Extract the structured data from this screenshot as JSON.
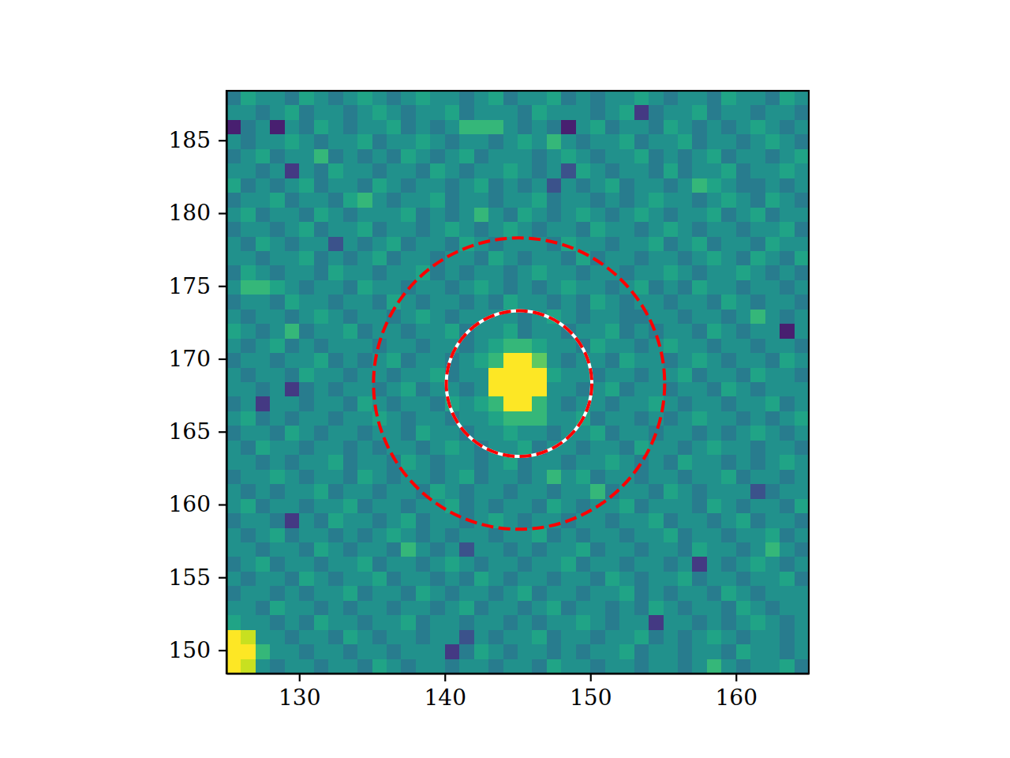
{
  "chart_data": {
    "type": "heatmap",
    "xlim": [
      125,
      165
    ],
    "ylim": [
      148.4,
      188.4
    ],
    "xticks": [
      130,
      140,
      150,
      160
    ],
    "yticks": [
      150,
      155,
      160,
      165,
      170,
      175,
      180,
      185
    ],
    "color": "viridis",
    "color_range": [
      -1,
      11
    ],
    "cells": [
      [
        4,
        6,
        5,
        5,
        4,
        6,
        5,
        4,
        5,
        6,
        5,
        4,
        5,
        6,
        5,
        5,
        4,
        5,
        6,
        4,
        5,
        5,
        6,
        4,
        5,
        4,
        5,
        5,
        6,
        5,
        4,
        5,
        5,
        4,
        6,
        5,
        5,
        4,
        6,
        5
      ],
      [
        5,
        5,
        4,
        5,
        6,
        4,
        5,
        5,
        4,
        5,
        6,
        5,
        4,
        5,
        5,
        6,
        4,
        5,
        5,
        5,
        4,
        6,
        5,
        5,
        5,
        4,
        5,
        6,
        1,
        4,
        5,
        5,
        6,
        4,
        5,
        5,
        4,
        5,
        5,
        4
      ],
      [
        0,
        4,
        5,
        0,
        5,
        4,
        6,
        5,
        4,
        5,
        5,
        6,
        4,
        5,
        4,
        5,
        7,
        7,
        7,
        5,
        4,
        5,
        4,
        0,
        5,
        6,
        4,
        5,
        5,
        4,
        6,
        5,
        4,
        5,
        4,
        5,
        6,
        5,
        4,
        5
      ],
      [
        5,
        4,
        5,
        5,
        6,
        5,
        4,
        5,
        5,
        6,
        4,
        5,
        5,
        6,
        5,
        4,
        5,
        5,
        4,
        5,
        6,
        5,
        7,
        5,
        4,
        5,
        5,
        6,
        4,
        5,
        5,
        6,
        4,
        5,
        5,
        4,
        5,
        6,
        5,
        4
      ],
      [
        4,
        5,
        6,
        4,
        5,
        5,
        7,
        4,
        5,
        4,
        5,
        4,
        6,
        5,
        4,
        5,
        6,
        4,
        5,
        5,
        5,
        4,
        5,
        6,
        5,
        4,
        5,
        5,
        6,
        4,
        5,
        4,
        5,
        6,
        4,
        5,
        5,
        4,
        5,
        6
      ],
      [
        5,
        5,
        4,
        5,
        1,
        5,
        4,
        6,
        5,
        5,
        4,
        5,
        5,
        4,
        6,
        5,
        4,
        5,
        5,
        6,
        5,
        4,
        5,
        2,
        6,
        5,
        4,
        5,
        5,
        4,
        6,
        4,
        5,
        5,
        6,
        4,
        5,
        5,
        6,
        5
      ],
      [
        6,
        4,
        5,
        4,
        5,
        6,
        4,
        5,
        5,
        4,
        6,
        5,
        4,
        5,
        5,
        4,
        5,
        6,
        4,
        5,
        4,
        5,
        2,
        5,
        4,
        5,
        6,
        4,
        5,
        5,
        4,
        5,
        7,
        6,
        5,
        4,
        4,
        5,
        4,
        5
      ],
      [
        4,
        5,
        5,
        6,
        4,
        5,
        5,
        4,
        6,
        7,
        5,
        4,
        5,
        5,
        6,
        4,
        5,
        5,
        4,
        5,
        5,
        6,
        4,
        5,
        5,
        4,
        5,
        4,
        5,
        6,
        5,
        5,
        4,
        5,
        6,
        5,
        4,
        6,
        5,
        4
      ],
      [
        5,
        6,
        4,
        5,
        5,
        4,
        6,
        5,
        4,
        5,
        5,
        5,
        6,
        4,
        5,
        4,
        5,
        7,
        5,
        4,
        6,
        5,
        4,
        5,
        6,
        5,
        4,
        5,
        6,
        5,
        4,
        5,
        5,
        6,
        4,
        5,
        6,
        4,
        5,
        5
      ],
      [
        4,
        5,
        5,
        4,
        5,
        6,
        4,
        5,
        5,
        6,
        4,
        5,
        5,
        4,
        5,
        6,
        5,
        4,
        5,
        6,
        5,
        4,
        5,
        5,
        4,
        6,
        5,
        5,
        4,
        5,
        6,
        5,
        4,
        5,
        5,
        4,
        5,
        5,
        6,
        4
      ],
      [
        5,
        4,
        6,
        5,
        4,
        5,
        5,
        2,
        5,
        4,
        5,
        6,
        4,
        5,
        5,
        4,
        6,
        5,
        4,
        5,
        5,
        5,
        4,
        6,
        5,
        5,
        4,
        5,
        5,
        6,
        4,
        5,
        6,
        4,
        5,
        5,
        4,
        6,
        5,
        5
      ],
      [
        5,
        5,
        4,
        5,
        5,
        6,
        4,
        5,
        4,
        5,
        6,
        4,
        5,
        5,
        4,
        5,
        5,
        4,
        6,
        5,
        4,
        5,
        5,
        4,
        6,
        4,
        5,
        5,
        4,
        5,
        5,
        4,
        5,
        6,
        5,
        4,
        6,
        5,
        4,
        6
      ],
      [
        4,
        6,
        5,
        4,
        5,
        5,
        4,
        6,
        5,
        5,
        4,
        5,
        5,
        6,
        4,
        5,
        4,
        5,
        5,
        4,
        5,
        6,
        5,
        5,
        4,
        5,
        5,
        4,
        5,
        5,
        6,
        5,
        4,
        5,
        5,
        6,
        5,
        4,
        5,
        4
      ],
      [
        5,
        7,
        7,
        6,
        5,
        4,
        5,
        5,
        4,
        6,
        5,
        5,
        4,
        5,
        5,
        4,
        5,
        6,
        5,
        4,
        5,
        4,
        5,
        6,
        5,
        5,
        4,
        5,
        6,
        4,
        5,
        4,
        6,
        5,
        5,
        4,
        5,
        5,
        4,
        5
      ],
      [
        4,
        5,
        5,
        4,
        6,
        5,
        5,
        4,
        5,
        5,
        4,
        6,
        5,
        4,
        5,
        5,
        4,
        5,
        4,
        6,
        5,
        5,
        4,
        5,
        4,
        6,
        5,
        4,
        5,
        5,
        4,
        5,
        5,
        4,
        6,
        5,
        4,
        5,
        5,
        4
      ],
      [
        5,
        4,
        5,
        5,
        4,
        5,
        6,
        5,
        4,
        5,
        5,
        4,
        5,
        6,
        5,
        4,
        5,
        5,
        5,
        5,
        4,
        5,
        6,
        5,
        4,
        5,
        5,
        4,
        4,
        5,
        5,
        4,
        5,
        5,
        4,
        5,
        7,
        5,
        4,
        5
      ],
      [
        6,
        5,
        4,
        5,
        7,
        4,
        5,
        5,
        6,
        4,
        5,
        5,
        4,
        5,
        5,
        6,
        4,
        5,
        5,
        6,
        4,
        5,
        5,
        4,
        5,
        5,
        6,
        4,
        5,
        4,
        5,
        5,
        4,
        6,
        5,
        4,
        5,
        5,
        0,
        5
      ],
      [
        5,
        4,
        5,
        6,
        4,
        5,
        4,
        5,
        5,
        5,
        4,
        5,
        5,
        4,
        5,
        5,
        4,
        5,
        6,
        7,
        7,
        6,
        5,
        5,
        4,
        6,
        5,
        5,
        4,
        5,
        6,
        5,
        5,
        4,
        5,
        5,
        4,
        5,
        5,
        4
      ],
      [
        4,
        5,
        5,
        4,
        5,
        5,
        6,
        4,
        5,
        4,
        5,
        6,
        4,
        5,
        5,
        4,
        5,
        6,
        7,
        12,
        12,
        8,
        5,
        4,
        5,
        5,
        4,
        6,
        5,
        5,
        4,
        5,
        6,
        5,
        4,
        5,
        5,
        4,
        6,
        5
      ],
      [
        5,
        4,
        5,
        5,
        4,
        6,
        5,
        5,
        4,
        5,
        5,
        4,
        5,
        5,
        6,
        4,
        5,
        5,
        12,
        12,
        12,
        12,
        6,
        5,
        5,
        4,
        5,
        5,
        4,
        5,
        5,
        6,
        4,
        5,
        5,
        4,
        6,
        5,
        5,
        4
      ],
      [
        5,
        5,
        4,
        5,
        1,
        4,
        5,
        4,
        5,
        5,
        4,
        5,
        6,
        4,
        5,
        5,
        4,
        5,
        12,
        12,
        12,
        12,
        5,
        5,
        4,
        5,
        6,
        4,
        5,
        5,
        4,
        5,
        5,
        4,
        6,
        5,
        4,
        5,
        5,
        5
      ],
      [
        4,
        5,
        1,
        5,
        5,
        4,
        5,
        5,
        4,
        6,
        5,
        4,
        5,
        5,
        4,
        6,
        5,
        6,
        7,
        12,
        12,
        7,
        5,
        4,
        5,
        5,
        4,
        5,
        5,
        6,
        5,
        4,
        5,
        5,
        4,
        5,
        5,
        6,
        4,
        5
      ],
      [
        5,
        6,
        4,
        5,
        4,
        5,
        5,
        4,
        5,
        5,
        6,
        5,
        4,
        5,
        5,
        4,
        5,
        5,
        6,
        7,
        7,
        7,
        5,
        5,
        6,
        4,
        5,
        5,
        4,
        5,
        4,
        5,
        6,
        5,
        5,
        4,
        5,
        4,
        5,
        6
      ],
      [
        4,
        5,
        5,
        4,
        6,
        5,
        4,
        5,
        5,
        4,
        5,
        5,
        4,
        6,
        5,
        5,
        4,
        5,
        5,
        6,
        5,
        5,
        4,
        5,
        5,
        6,
        4,
        5,
        5,
        4,
        5,
        5,
        4,
        5,
        4,
        5,
        6,
        5,
        4,
        5
      ],
      [
        5,
        4,
        6,
        5,
        5,
        4,
        5,
        5,
        4,
        5,
        4,
        5,
        5,
        4,
        5,
        6,
        5,
        4,
        5,
        5,
        6,
        4,
        5,
        5,
        4,
        5,
        5,
        4,
        6,
        5,
        5,
        4,
        5,
        6,
        5,
        5,
        4,
        5,
        5,
        4
      ],
      [
        5,
        5,
        4,
        5,
        4,
        5,
        5,
        6,
        4,
        5,
        5,
        4,
        6,
        5,
        4,
        5,
        5,
        4,
        5,
        6,
        4,
        5,
        5,
        4,
        5,
        5,
        6,
        5,
        4,
        5,
        4,
        6,
        5,
        5,
        4,
        5,
        4,
        5,
        6,
        5
      ],
      [
        4,
        5,
        5,
        6,
        5,
        4,
        5,
        5,
        4,
        6,
        5,
        4,
        5,
        5,
        4,
        5,
        6,
        4,
        5,
        5,
        4,
        5,
        7,
        5,
        6,
        4,
        5,
        5,
        4,
        5,
        5,
        4,
        5,
        5,
        6,
        4,
        5,
        5,
        4,
        5
      ],
      [
        5,
        4,
        5,
        4,
        5,
        5,
        6,
        4,
        5,
        5,
        4,
        5,
        5,
        4,
        6,
        5,
        4,
        5,
        5,
        4,
        5,
        5,
        4,
        5,
        5,
        7,
        4,
        5,
        5,
        4,
        6,
        5,
        4,
        5,
        5,
        5,
        2,
        4,
        5,
        5
      ],
      [
        5,
        6,
        4,
        5,
        5,
        4,
        5,
        5,
        6,
        4,
        5,
        5,
        4,
        5,
        5,
        6,
        4,
        5,
        4,
        5,
        5,
        4,
        6,
        5,
        4,
        5,
        5,
        6,
        4,
        5,
        5,
        5,
        4,
        6,
        5,
        4,
        5,
        5,
        4,
        6
      ],
      [
        4,
        5,
        5,
        4,
        1,
        5,
        4,
        6,
        5,
        5,
        4,
        5,
        6,
        4,
        5,
        5,
        4,
        5,
        6,
        5,
        4,
        5,
        5,
        4,
        5,
        5,
        4,
        5,
        5,
        6,
        4,
        5,
        5,
        4,
        5,
        6,
        4,
        5,
        5,
        4
      ],
      [
        5,
        4,
        5,
        6,
        4,
        5,
        5,
        4,
        5,
        4,
        5,
        6,
        5,
        4,
        5,
        4,
        5,
        5,
        4,
        5,
        5,
        6,
        4,
        5,
        4,
        5,
        5,
        4,
        5,
        5,
        6,
        4,
        5,
        5,
        4,
        5,
        5,
        6,
        4,
        5
      ],
      [
        5,
        5,
        4,
        5,
        5,
        4,
        6,
        5,
        4,
        5,
        5,
        4,
        7,
        5,
        4,
        5,
        2,
        5,
        5,
        4,
        5,
        4,
        5,
        5,
        6,
        4,
        5,
        5,
        4,
        5,
        5,
        4,
        6,
        5,
        5,
        4,
        5,
        7,
        5,
        4
      ],
      [
        4,
        5,
        6,
        4,
        5,
        5,
        4,
        5,
        5,
        6,
        4,
        5,
        5,
        4,
        5,
        6,
        5,
        4,
        5,
        5,
        4,
        5,
        5,
        6,
        4,
        5,
        5,
        4,
        5,
        5,
        4,
        5,
        1,
        5,
        4,
        5,
        6,
        5,
        4,
        5
      ],
      [
        5,
        4,
        5,
        5,
        4,
        6,
        5,
        4,
        5,
        5,
        6,
        4,
        5,
        5,
        4,
        5,
        4,
        6,
        5,
        4,
        5,
        5,
        4,
        5,
        5,
        4,
        6,
        5,
        4,
        5,
        5,
        6,
        4,
        5,
        5,
        4,
        5,
        5,
        6,
        4
      ],
      [
        4,
        5,
        5,
        4,
        5,
        4,
        5,
        5,
        6,
        4,
        5,
        5,
        4,
        6,
        5,
        4,
        5,
        5,
        4,
        5,
        6,
        4,
        5,
        5,
        4,
        5,
        5,
        6,
        4,
        5,
        4,
        5,
        5,
        4,
        6,
        5,
        4,
        5,
        5,
        5
      ],
      [
        5,
        5,
        4,
        6,
        5,
        5,
        4,
        5,
        4,
        5,
        5,
        4,
        5,
        5,
        4,
        5,
        6,
        4,
        5,
        5,
        4,
        5,
        6,
        4,
        5,
        5,
        4,
        5,
        4,
        6,
        5,
        4,
        5,
        5,
        4,
        6,
        5,
        4,
        5,
        5
      ],
      [
        6,
        5,
        5,
        4,
        5,
        4,
        6,
        5,
        5,
        4,
        5,
        5,
        6,
        4,
        5,
        5,
        4,
        5,
        5,
        4,
        5,
        4,
        5,
        5,
        6,
        5,
        4,
        5,
        5,
        1,
        5,
        5,
        4,
        5,
        4,
        5,
        6,
        5,
        4,
        5
      ],
      [
        12,
        10,
        5,
        5,
        4,
        5,
        5,
        4,
        6,
        5,
        4,
        5,
        5,
        4,
        5,
        5,
        2,
        5,
        4,
        5,
        5,
        6,
        4,
        5,
        5,
        4,
        5,
        5,
        6,
        4,
        5,
        4,
        5,
        6,
        5,
        4,
        5,
        5,
        4,
        5
      ],
      [
        12,
        12,
        7,
        5,
        5,
        4,
        5,
        5,
        4,
        5,
        5,
        4,
        5,
        5,
        5,
        1,
        4,
        6,
        5,
        4,
        5,
        5,
        4,
        5,
        4,
        5,
        5,
        6,
        4,
        5,
        5,
        4,
        5,
        5,
        4,
        6,
        5,
        5,
        4,
        5
      ],
      [
        12,
        10,
        5,
        4,
        5,
        5,
        4,
        5,
        5,
        4,
        6,
        5,
        4,
        5,
        5,
        4,
        5,
        5,
        4,
        5,
        5,
        4,
        6,
        5,
        5,
        4,
        5,
        5,
        4,
        5,
        5,
        4,
        5,
        7,
        5,
        4,
        5,
        5,
        6,
        4
      ]
    ],
    "circles": [
      {
        "center": [
          145.1,
          168.3
        ],
        "radius": 5,
        "colors": [
          "white",
          "red"
        ],
        "line_style": "dashed"
      },
      {
        "center": [
          145.1,
          168.3
        ],
        "radius": 10,
        "colors": [
          "red"
        ],
        "line_style": "dashed"
      }
    ]
  }
}
